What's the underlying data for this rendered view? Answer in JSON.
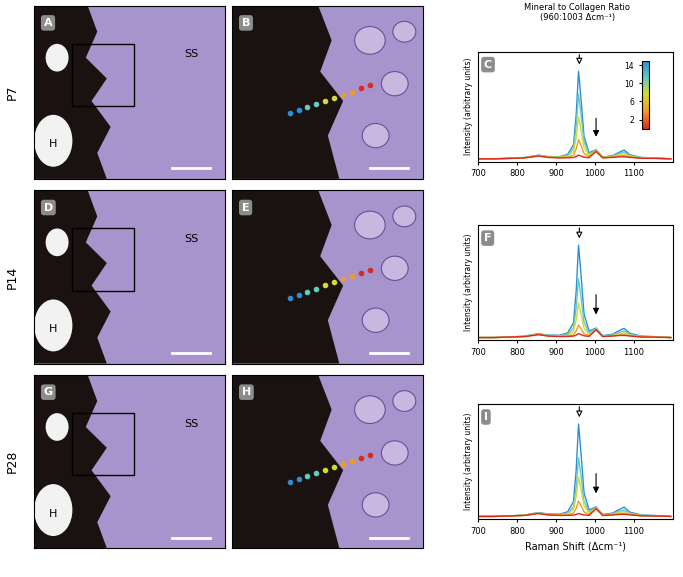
{
  "row_labels": [
    "P7",
    "P14",
    "P28"
  ],
  "image_panels": [
    {
      "label": "A",
      "annotations": [
        "SS",
        "H"
      ]
    },
    {
      "label": "B"
    },
    {
      "label": "D",
      "annotations": [
        "SS",
        "H"
      ]
    },
    {
      "label": "E"
    },
    {
      "label": "G",
      "annotations": [
        "SS",
        "H"
      ]
    },
    {
      "label": "H"
    }
  ],
  "colorbar": {
    "title": "Mineral to Collagen Ratio\n(960:1003 Δcm⁻¹)",
    "range": [
      0,
      15
    ],
    "ticks": [
      2,
      6,
      10,
      14
    ],
    "colors": [
      "#d92b1e",
      "#f09a28",
      "#d8d832",
      "#66c9c0",
      "#2c8fd6"
    ]
  },
  "peak_markers": [
    960,
    1003
  ],
  "chart_data": [
    {
      "type": "line",
      "label": "C",
      "ylabel": "Intensity (arbitrary units)",
      "x": [
        700,
        740,
        780,
        820,
        855,
        880,
        910,
        930,
        945,
        952,
        958,
        964,
        972,
        985,
        1003,
        1020,
        1045,
        1065,
        1075,
        1090,
        1120,
        1150,
        1195
      ],
      "xlim": [
        700,
        1200
      ],
      "xticks": [
        700,
        800,
        900,
        1000,
        1100
      ],
      "ylim": [
        0,
        120
      ],
      "yticks": [],
      "tick_labels": "x",
      "series": [
        {
          "color": "#2c8fd6",
          "values": [
            3,
            3,
            3.5,
            4.5,
            7,
            5.5,
            5.4,
            7.8,
            18.3,
            51.5,
            99,
            70.5,
            27.8,
            9.7,
            12.9,
            5,
            6.4,
            10.7,
            12.6,
            7.4,
            4.5,
            4,
            3
          ]
        },
        {
          "color": "#66c9c0",
          "values": [
            3,
            3,
            3.5,
            4.4,
            6.7,
            5.2,
            5.1,
            6.8,
            14.5,
            39,
            74,
            53,
            21.5,
            8.2,
            12.4,
            4.7,
            5.9,
            9.2,
            10.6,
            6.6,
            4.2,
            3.9,
            3
          ]
        },
        {
          "color": "#d8d832",
          "values": [
            3,
            3,
            3.5,
            4.2,
            6.5,
            5,
            4.7,
            5.8,
            10.8,
            26.5,
            49,
            35.5,
            15.3,
            6.7,
            11.9,
            4.5,
            5.4,
            7.7,
            8.6,
            5.9,
            4,
            3.7,
            3
          ]
        },
        {
          "color": "#f09a28",
          "values": [
            3,
            3,
            3.5,
            4.1,
            6.2,
            4.7,
            4.3,
            4.8,
            7,
            14,
            24,
            18,
            9,
            5.2,
            11.4,
            4.2,
            4.9,
            6.2,
            6.6,
            5.1,
            3.7,
            3.6,
            3
          ]
        },
        {
          "color": "#d92b1e",
          "values": [
            3,
            3,
            3.5,
            4,
            6,
            4.5,
            4,
            4.1,
            4.5,
            5.5,
            7,
            6.1,
            4.8,
            4.2,
            11.1,
            4,
            4.6,
            5.2,
            5.2,
            4.6,
            3.5,
            3.5,
            3
          ]
        }
      ]
    },
    {
      "type": "line",
      "label": "F",
      "ylabel": "Intensity (arbitrary units)",
      "x": [
        700,
        740,
        780,
        820,
        855,
        880,
        910,
        930,
        945,
        952,
        958,
        964,
        972,
        985,
        1003,
        1020,
        1045,
        1065,
        1075,
        1090,
        1120,
        1150,
        1195
      ],
      "xlim": [
        700,
        1200
      ],
      "xticks": [
        700,
        800,
        900,
        1000,
        1100
      ],
      "ylim": [
        0,
        120
      ],
      "yticks": [],
      "tick_labels": "x",
      "series": [
        {
          "color": "#2c8fd6",
          "values": [
            3,
            3,
            3.5,
            4.5,
            7,
            5.5,
            5.4,
            7.8,
            18.3,
            51.5,
            99,
            70.5,
            27.8,
            9.7,
            12.9,
            5,
            6.4,
            10.7,
            12.6,
            7.4,
            4.5,
            4,
            3
          ]
        },
        {
          "color": "#66c9c0",
          "values": [
            3,
            3,
            3.5,
            4.3,
            6.6,
            5.1,
            4.9,
            6.4,
            13,
            34,
            64,
            46,
            19,
            7.6,
            12.2,
            4.6,
            5.7,
            8.6,
            9.8,
            6.3,
            4.1,
            3.8,
            3
          ]
        },
        {
          "color": "#d8d832",
          "values": [
            3,
            3,
            3.5,
            4.2,
            6.4,
            4.9,
            4.5,
            5.4,
            9.3,
            21.5,
            39,
            28.5,
            12.8,
            6.1,
            11.7,
            4.4,
            5.2,
            7.1,
            7.8,
            5.6,
            3.9,
            3.7,
            3
          ]
        },
        {
          "color": "#f09a28",
          "values": [
            3,
            3,
            3.5,
            4.1,
            6.1,
            4.6,
            4.2,
            4.5,
            5.8,
            10,
            16,
            12.4,
            7,
            4.7,
            11.2,
            4.1,
            4.7,
            5.7,
            6,
            4.9,
            3.6,
            3.6,
            3
          ]
        },
        {
          "color": "#d92b1e",
          "values": [
            3,
            3,
            3.5,
            4,
            6,
            4.5,
            4,
            4.1,
            4.5,
            5.5,
            7,
            6.1,
            4.8,
            4.2,
            11.1,
            4,
            4.6,
            5.2,
            5.2,
            4.6,
            3.5,
            3.5,
            3
          ]
        }
      ]
    },
    {
      "type": "line",
      "label": "I",
      "ylabel": "Intensity (arbitrary units)",
      "xlabel": "Raman Shift (Δcm⁻¹)",
      "x": [
        700,
        740,
        780,
        820,
        855,
        880,
        910,
        930,
        945,
        952,
        958,
        964,
        972,
        985,
        1003,
        1020,
        1045,
        1065,
        1075,
        1090,
        1120,
        1150,
        1195
      ],
      "xlim": [
        700,
        1200
      ],
      "xticks": [
        700,
        800,
        900,
        1000,
        1100
      ],
      "ylim": [
        0,
        120
      ],
      "yticks": [],
      "tick_labels": "x",
      "series": [
        {
          "color": "#2c8fd6",
          "values": [
            3,
            3,
            3.5,
            4.5,
            7,
            5.5,
            5.4,
            7.8,
            18.3,
            51.5,
            99,
            70.5,
            27.8,
            9.7,
            12.9,
            5,
            6.4,
            10.7,
            12.6,
            7.4,
            4.5,
            4,
            3
          ]
        },
        {
          "color": "#66c9c0",
          "values": [
            3,
            3,
            3.5,
            4.3,
            6.6,
            5.1,
            4.9,
            6.4,
            13,
            34,
            64,
            46,
            19,
            7.6,
            12.2,
            4.6,
            5.7,
            8.6,
            9.8,
            6.3,
            4.1,
            3.8,
            3
          ]
        },
        {
          "color": "#d8d832",
          "values": [
            3,
            3,
            3.5,
            4.2,
            6.4,
            4.9,
            4.6,
            5.6,
            10,
            24,
            44,
            32,
            14,
            6.4,
            11.8,
            4.4,
            5.3,
            7.4,
            8.2,
            5.7,
            3.9,
            3.7,
            3
          ]
        },
        {
          "color": "#f09a28",
          "values": [
            3,
            3,
            3.5,
            4.1,
            6.2,
            4.7,
            4.2,
            4.6,
            6.3,
            11.5,
            19,
            14.5,
            7.8,
            4.9,
            11.3,
            4.2,
            4.8,
            5.9,
            6.2,
            5,
            3.7,
            3.6,
            3
          ]
        },
        {
          "color": "#d92b1e",
          "values": [
            3,
            3,
            3.5,
            4,
            6,
            4.5,
            4,
            4.1,
            4.3,
            5,
            6,
            5.4,
            4.5,
            4.1,
            11,
            4,
            4.5,
            5.1,
            5.2,
            4.6,
            3.5,
            3.5,
            3
          ]
        }
      ]
    }
  ]
}
